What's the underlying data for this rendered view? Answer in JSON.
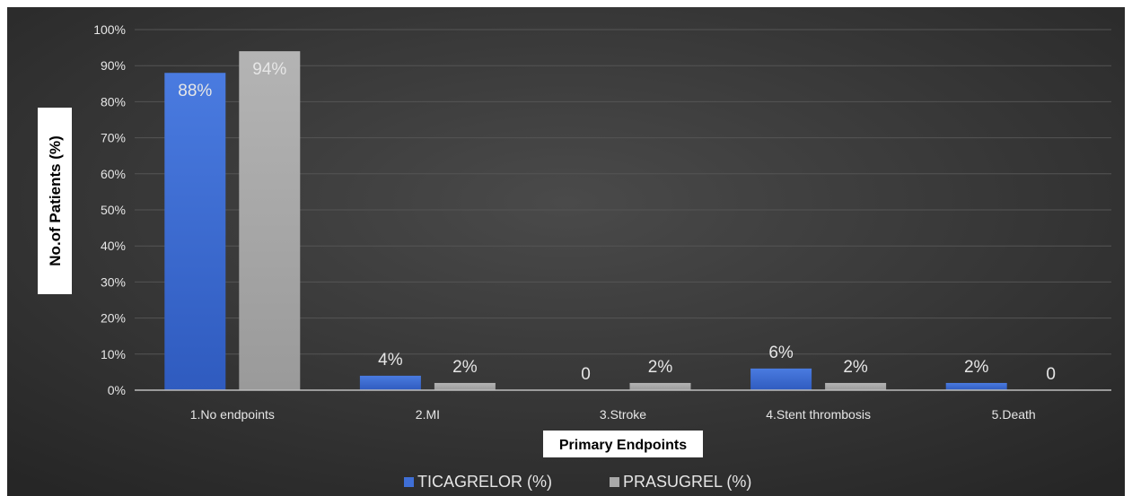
{
  "chart_data": {
    "type": "bar",
    "categories": [
      "1.No endpoints",
      "2.MI",
      "3.Stroke",
      "4.Stent thrombosis",
      "5.Death"
    ],
    "series": [
      {
        "name": "TICAGRELOR (%)",
        "values": [
          88,
          4,
          0,
          6,
          2
        ],
        "labels": [
          "88%",
          "4%",
          "0",
          "6%",
          "2%"
        ],
        "color": "#3f6fd6"
      },
      {
        "name": "PRASUGREL (%)",
        "values": [
          94,
          2,
          2,
          2,
          0
        ],
        "labels": [
          "94%",
          "2%",
          "2%",
          "2%",
          "0"
        ],
        "color": "#a9a9a9"
      }
    ],
    "title": "",
    "xlabel": "Primary Endpoints",
    "ylabel": "No.of Patients (%)",
    "ylim": [
      0,
      100
    ],
    "yticks": [
      "0%",
      "10%",
      "20%",
      "30%",
      "40%",
      "50%",
      "60%",
      "70%",
      "80%",
      "90%",
      "100%"
    ],
    "grid": true,
    "legend_position": "bottom",
    "background_color": "#3a3a3a",
    "text_color": "#e6e6e6"
  }
}
